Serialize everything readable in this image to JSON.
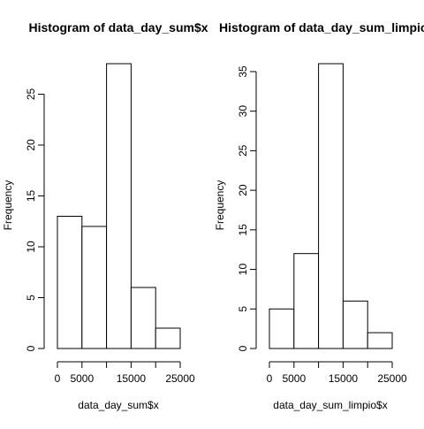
{
  "chart_data": [
    {
      "type": "bar",
      "title": "Histogram of data_day_sum$x",
      "xlabel": "data_day_sum$x",
      "ylabel": "Frequency",
      "bins": [
        [
          0,
          5000
        ],
        [
          5000,
          10000
        ],
        [
          10000,
          15000
        ],
        [
          15000,
          20000
        ],
        [
          20000,
          25000
        ]
      ],
      "values": [
        13,
        12,
        28,
        6,
        2
      ],
      "xlim": [
        0,
        25000
      ],
      "ylim": [
        0,
        28
      ],
      "xticks": [
        0,
        5000,
        10000,
        15000,
        20000,
        25000
      ],
      "xtick_labels": [
        "0",
        "5000",
        "",
        "15000",
        "",
        "25000"
      ],
      "yticks": [
        0,
        5,
        10,
        15,
        20,
        25
      ],
      "ytick_labels": [
        "0",
        "5",
        "10",
        "15",
        "20",
        "25"
      ],
      "grid": false,
      "legend": "none"
    },
    {
      "type": "bar",
      "title": "Histogram of data_day_sum_limpio$x",
      "xlabel": "data_day_sum_limpio$x",
      "ylabel": "Frequency",
      "bins": [
        [
          0,
          5000
        ],
        [
          5000,
          10000
        ],
        [
          10000,
          15000
        ],
        [
          15000,
          20000
        ],
        [
          20000,
          25000
        ]
      ],
      "values": [
        5,
        12,
        36,
        6,
        2
      ],
      "xlim": [
        0,
        25000
      ],
      "ylim": [
        0,
        36
      ],
      "xticks": [
        0,
        5000,
        10000,
        15000,
        20000,
        25000
      ],
      "xtick_labels": [
        "0",
        "5000",
        "",
        "15000",
        "",
        "25000"
      ],
      "yticks": [
        0,
        5,
        10,
        15,
        20,
        25,
        30,
        35
      ],
      "ytick_labels": [
        "0",
        "5",
        "10",
        "15",
        "20",
        "25",
        "30",
        "35"
      ],
      "grid": false,
      "legend": "none"
    }
  ]
}
